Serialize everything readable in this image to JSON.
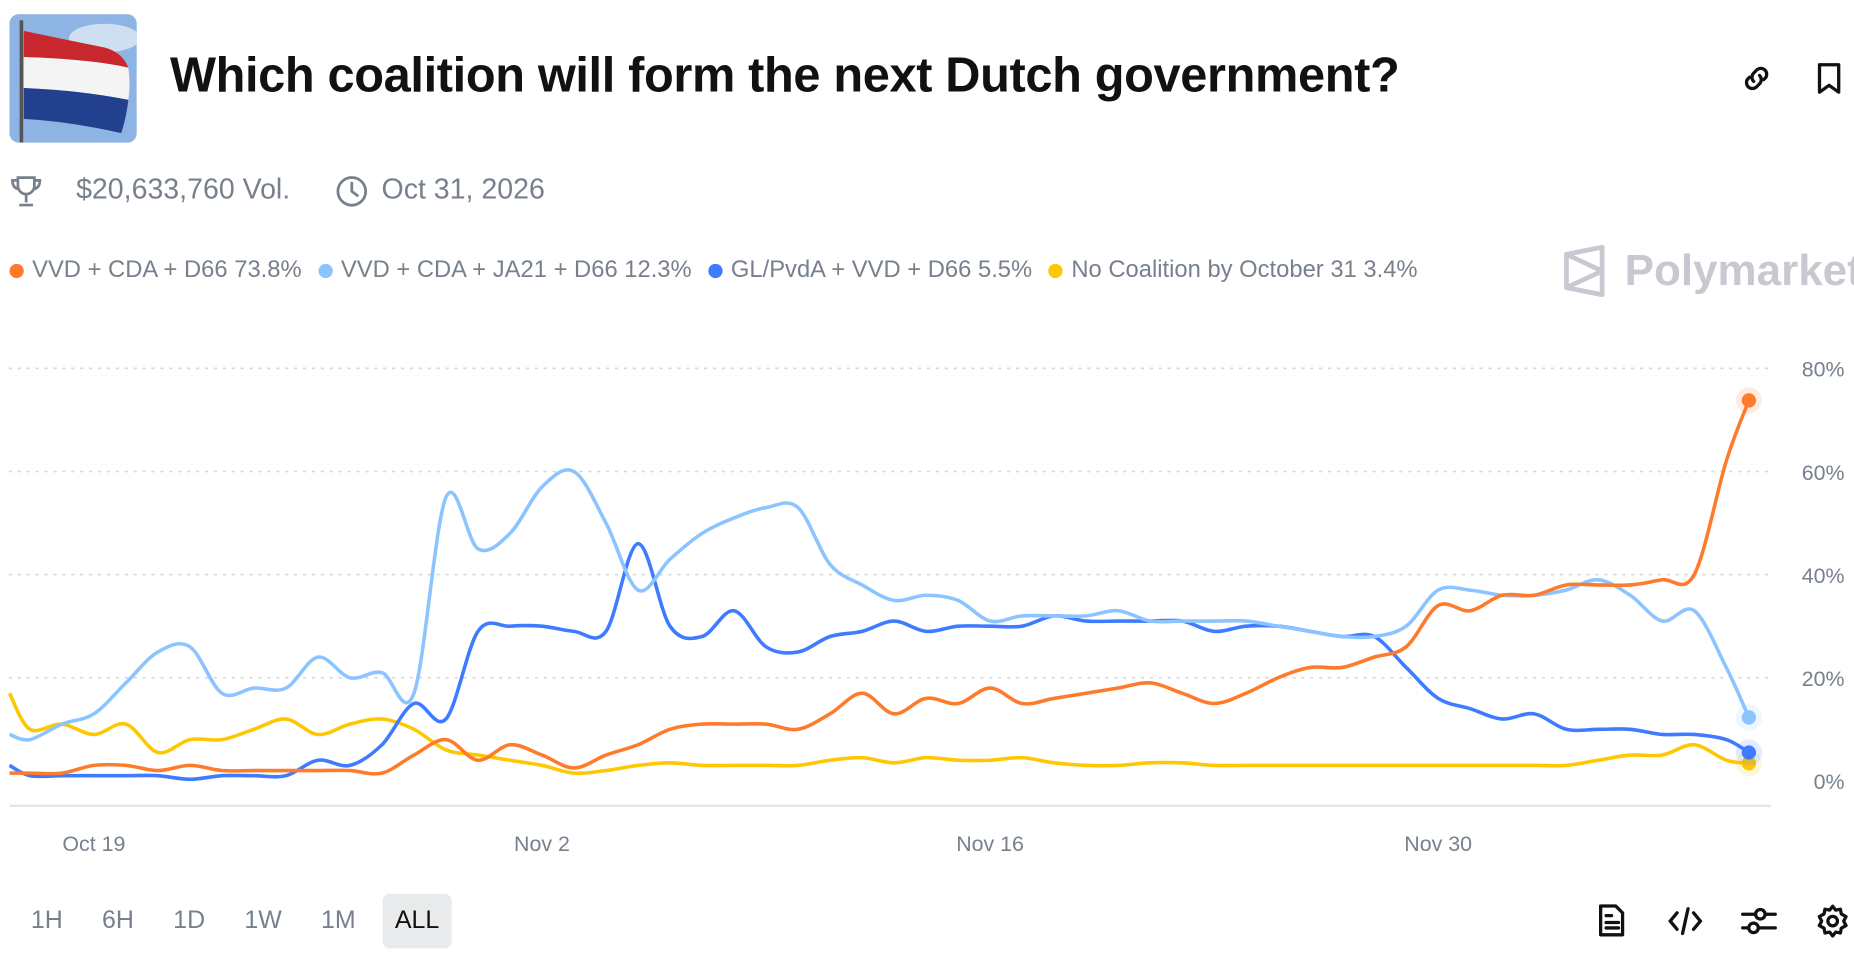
{
  "header": {
    "title": "Which coalition will form the next Dutch government?",
    "volume": "$20,633,760 Vol.",
    "end_date": "Oct 31, 2026",
    "icons": [
      "flag-image",
      "link-icon",
      "bookmark-icon",
      "trophy-icon",
      "clock-icon"
    ]
  },
  "brand": {
    "name": "Polymarket"
  },
  "legend": [
    {
      "label": "VVD + CDA + D66 73.8%",
      "color": "#FF7B2C"
    },
    {
      "label": "VVD + CDA + JA21 + D66 12.3%",
      "color": "#8CC4FF"
    },
    {
      "label": "GL/PvdA + VVD + D66 5.5%",
      "color": "#3F7BFF"
    },
    {
      "label": "No Coalition by October 31 3.4%",
      "color": "#FFC700"
    }
  ],
  "ranges": [
    {
      "label": "1H",
      "active": false
    },
    {
      "label": "6H",
      "active": false
    },
    {
      "label": "1D",
      "active": false
    },
    {
      "label": "1W",
      "active": false
    },
    {
      "label": "1M",
      "active": false
    },
    {
      "label": "ALL",
      "active": true
    }
  ],
  "tools": [
    "document-icon",
    "code-icon",
    "sliders-icon",
    "gear-icon"
  ],
  "chart_data": {
    "type": "line",
    "ylim": [
      0,
      80
    ],
    "yticks": [
      0,
      20,
      40,
      60,
      80
    ],
    "ytick_labels": [
      "0%",
      "20%",
      "40%",
      "60%",
      "80%"
    ],
    "xtick_labels": [
      "Oct 19",
      "Nov 2",
      "Nov 16",
      "Nov 30"
    ],
    "xticks": [
      "2025-10-19",
      "2025-11-02",
      "2025-11-16",
      "2025-11-30"
    ],
    "grid": true,
    "legend_position": "top",
    "x": [
      "2025-10-16T08:00",
      "2025-10-17",
      "2025-10-18",
      "2025-10-19",
      "2025-10-20",
      "2025-10-21",
      "2025-10-22",
      "2025-10-23",
      "2025-10-24",
      "2025-10-25",
      "2025-10-26",
      "2025-10-27",
      "2025-10-28",
      "2025-10-29",
      "2025-10-30",
      "2025-10-31",
      "2025-11-01",
      "2025-11-02",
      "2025-11-03",
      "2025-11-04",
      "2025-11-05",
      "2025-11-06",
      "2025-11-07",
      "2025-11-08",
      "2025-11-09",
      "2025-11-10",
      "2025-11-11",
      "2025-11-12",
      "2025-11-13",
      "2025-11-14",
      "2025-11-15",
      "2025-11-16",
      "2025-11-17",
      "2025-11-18",
      "2025-11-19",
      "2025-11-20",
      "2025-11-21",
      "2025-11-22",
      "2025-11-23",
      "2025-11-24",
      "2025-11-25",
      "2025-11-26",
      "2025-11-27",
      "2025-11-28",
      "2025-11-29",
      "2025-11-30",
      "2025-12-01",
      "2025-12-02",
      "2025-12-03",
      "2025-12-04",
      "2025-12-05",
      "2025-12-06",
      "2025-12-07",
      "2025-12-08",
      "2025-12-09",
      "2025-12-09T17:00"
    ],
    "series": [
      {
        "name": "VVD + CDA + D66",
        "color": "#FF7B2C",
        "values": [
          1.5,
          1.5,
          1.5,
          3,
          3,
          2,
          3,
          2,
          2,
          2,
          2,
          2,
          1.5,
          5,
          8,
          4,
          7,
          5,
          2.5,
          5,
          7,
          10,
          11,
          11,
          11,
          10,
          13,
          17,
          13,
          16,
          15,
          18,
          15,
          16,
          17,
          18,
          19,
          17,
          15,
          17,
          20,
          22,
          22,
          24,
          26,
          34,
          33,
          36,
          36,
          38,
          38,
          38,
          39,
          40,
          62,
          73.8
        ]
      },
      {
        "name": "VVD + CDA + JA21 + D66",
        "color": "#8CC4FF",
        "values": [
          9,
          8,
          11,
          13,
          19,
          25,
          26,
          17,
          18,
          18,
          24,
          20,
          21,
          17,
          55,
          45,
          48,
          57,
          60,
          50,
          37,
          43,
          48,
          51,
          53,
          53,
          42,
          38,
          35,
          36,
          35,
          31,
          32,
          32,
          32,
          33,
          31,
          31,
          31,
          31,
          30,
          29,
          28,
          28,
          30,
          37,
          37,
          36,
          36,
          37,
          39,
          36,
          31,
          33,
          22,
          12.3
        ]
      },
      {
        "name": "GL/PvdA + VVD + D66",
        "color": "#3F7BFF",
        "values": [
          3,
          1,
          1,
          1,
          1,
          1,
          0.3,
          1,
          1,
          1,
          4,
          3,
          7,
          15,
          12,
          29,
          30,
          30,
          29,
          29,
          46,
          30,
          28,
          33,
          26,
          25,
          28,
          29,
          31,
          29,
          30,
          30,
          30,
          32,
          31,
          31,
          31,
          31,
          29,
          30,
          30,
          29,
          28,
          28,
          22,
          16,
          14,
          12,
          13,
          10,
          10,
          10,
          9,
          9,
          8,
          5.5
        ]
      },
      {
        "name": "No Coalition by October 31",
        "color": "#FFC700",
        "values": [
          17,
          10,
          11,
          9,
          11,
          5.5,
          8,
          8,
          10,
          12,
          9,
          11,
          12,
          10,
          6,
          5,
          4,
          3,
          1.5,
          2,
          3,
          3.5,
          3,
          3,
          3,
          3,
          4,
          4.5,
          3.5,
          4.5,
          4,
          4,
          4.5,
          3.5,
          3,
          3,
          3.5,
          3.5,
          3,
          3,
          3,
          3,
          3,
          3,
          3,
          3,
          3,
          3,
          3,
          3,
          4,
          5,
          5,
          7,
          4,
          3.4
        ]
      }
    ]
  }
}
